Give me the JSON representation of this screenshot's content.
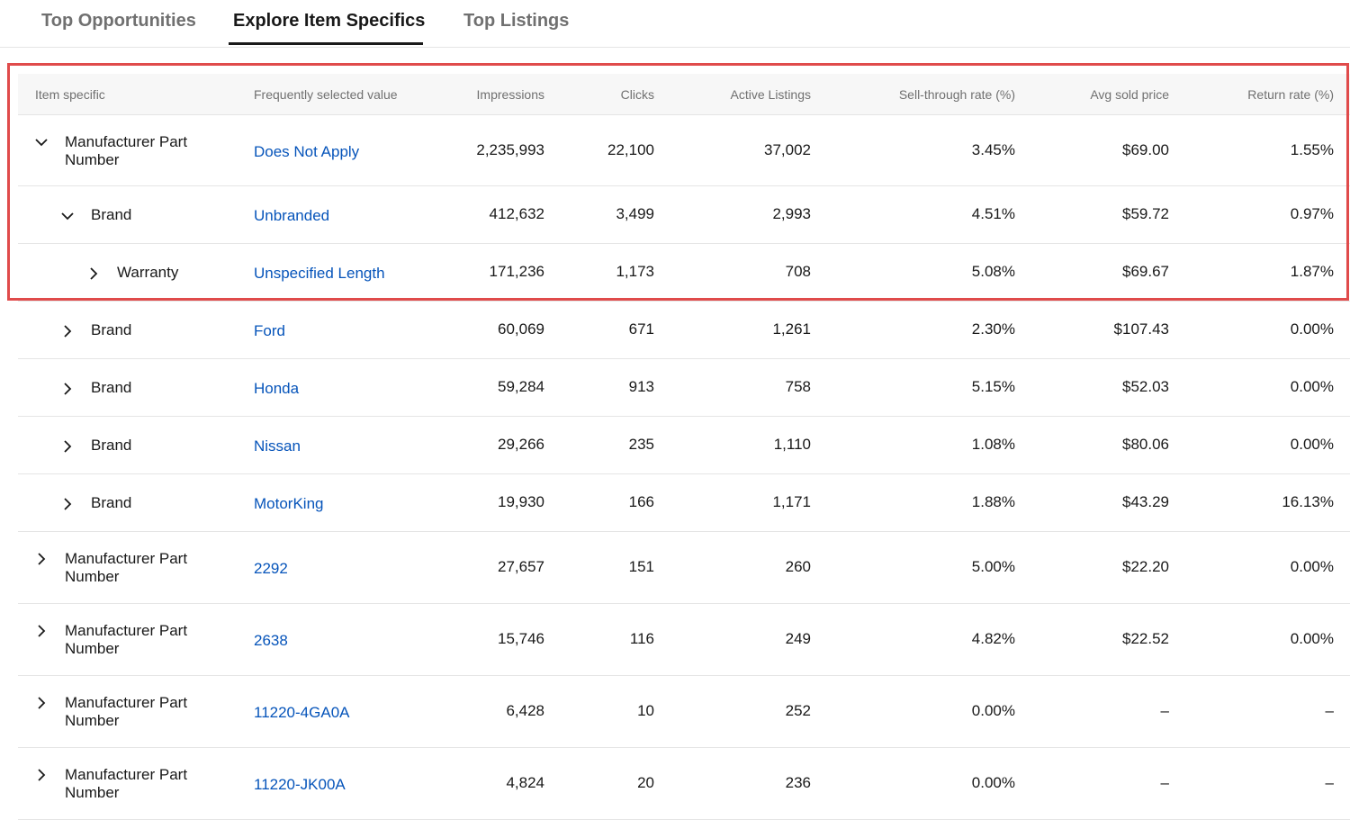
{
  "tabs": [
    {
      "label": "Top Opportunities",
      "active": false
    },
    {
      "label": "Explore Item Specifics",
      "active": true
    },
    {
      "label": "Top Listings",
      "active": false
    }
  ],
  "table": {
    "headers": {
      "item_specific": "Item specific",
      "value": "Frequently selected value",
      "impressions": "Impressions",
      "clicks": "Clicks",
      "active_listings": "Active Listings",
      "sell_through": "Sell-through rate (%)",
      "avg_price": "Avg sold price",
      "return_rate": "Return rate (%)"
    },
    "rows": [
      {
        "spec_line1": "Manufacturer Part",
        "spec_line2": "Number",
        "expanded": true,
        "depth": 0,
        "value": "Does Not Apply",
        "impressions": "2,235,993",
        "clicks": "22,100",
        "active_listings": "37,002",
        "sell_through": "3.45%",
        "avg_price": "$69.00",
        "return_rate": "1.55%"
      },
      {
        "spec_line1": "Brand",
        "expanded": true,
        "depth": 1,
        "value": "Unbranded",
        "impressions": "412,632",
        "clicks": "3,499",
        "active_listings": "2,993",
        "sell_through": "4.51%",
        "avg_price": "$59.72",
        "return_rate": "0.97%"
      },
      {
        "spec_line1": "Warranty",
        "expanded": false,
        "depth": 2,
        "value": "Unspecified Length",
        "impressions": "171,236",
        "clicks": "1,173",
        "active_listings": "708",
        "sell_through": "5.08%",
        "avg_price": "$69.67",
        "return_rate": "1.87%"
      },
      {
        "spec_line1": "Brand",
        "expanded": false,
        "depth": 1,
        "value": "Ford",
        "impressions": "60,069",
        "clicks": "671",
        "active_listings": "1,261",
        "sell_through": "2.30%",
        "avg_price": "$107.43",
        "return_rate": "0.00%"
      },
      {
        "spec_line1": "Brand",
        "expanded": false,
        "depth": 1,
        "value": "Honda",
        "impressions": "59,284",
        "clicks": "913",
        "active_listings": "758",
        "sell_through": "5.15%",
        "avg_price": "$52.03",
        "return_rate": "0.00%"
      },
      {
        "spec_line1": "Brand",
        "expanded": false,
        "depth": 1,
        "value": "Nissan",
        "impressions": "29,266",
        "clicks": "235",
        "active_listings": "1,110",
        "sell_through": "1.08%",
        "avg_price": "$80.06",
        "return_rate": "0.00%"
      },
      {
        "spec_line1": "Brand",
        "expanded": false,
        "depth": 1,
        "value": "MotorKing",
        "impressions": "19,930",
        "clicks": "166",
        "active_listings": "1,171",
        "sell_through": "1.88%",
        "avg_price": "$43.29",
        "return_rate": "16.13%"
      },
      {
        "spec_line1": "Manufacturer Part",
        "spec_line2": "Number",
        "expanded": false,
        "depth": 0,
        "value": "2292",
        "impressions": "27,657",
        "clicks": "151",
        "active_listings": "260",
        "sell_through": "5.00%",
        "avg_price": "$22.20",
        "return_rate": "0.00%"
      },
      {
        "spec_line1": "Manufacturer Part",
        "spec_line2": "Number",
        "expanded": false,
        "depth": 0,
        "value": "2638",
        "impressions": "15,746",
        "clicks": "116",
        "active_listings": "249",
        "sell_through": "4.82%",
        "avg_price": "$22.52",
        "return_rate": "0.00%"
      },
      {
        "spec_line1": "Manufacturer Part",
        "spec_line2": "Number",
        "expanded": false,
        "depth": 0,
        "value": "11220-4GA0A",
        "impressions": "6,428",
        "clicks": "10",
        "active_listings": "252",
        "sell_through": "0.00%",
        "avg_price": "–",
        "return_rate": "–"
      },
      {
        "spec_line1": "Manufacturer Part",
        "spec_line2": "Number",
        "expanded": false,
        "depth": 0,
        "value": "11220-JK00A",
        "impressions": "4,824",
        "clicks": "20",
        "active_listings": "236",
        "sell_through": "0.00%",
        "avg_price": "–",
        "return_rate": "–"
      }
    ]
  },
  "colors": {
    "link": "#0654ba",
    "highlight": "#e04b4b",
    "header_bg": "#f7f7f7"
  }
}
